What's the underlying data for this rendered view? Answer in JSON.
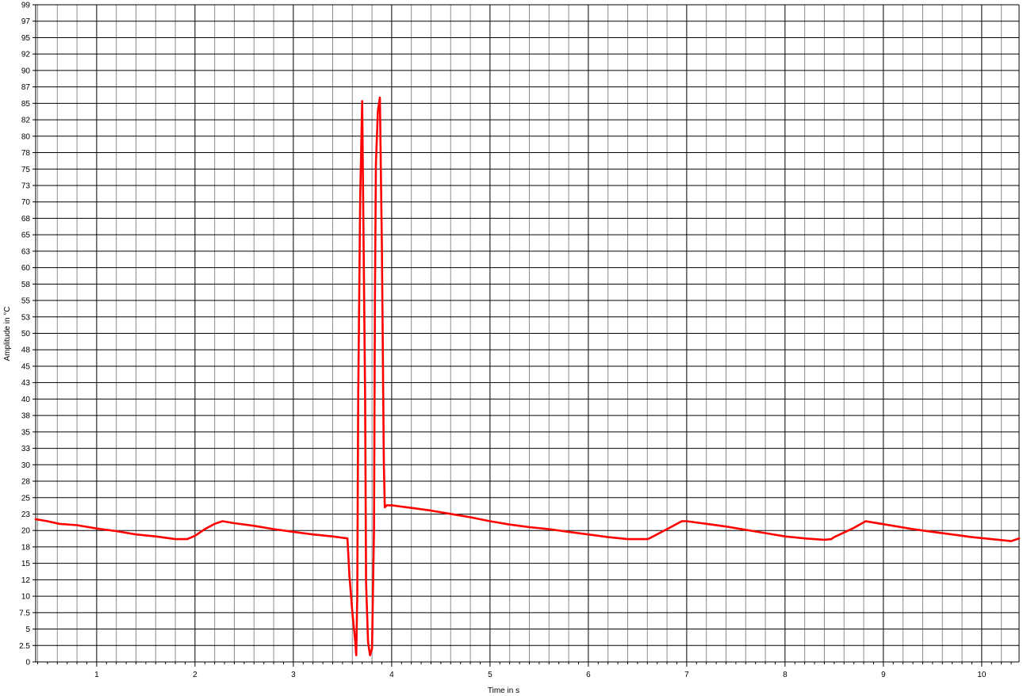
{
  "chart_data": {
    "type": "line",
    "title": "",
    "xlabel": "Time in s",
    "ylabel": "Amplitude in °C",
    "xlim": [
      0.38,
      10.38
    ],
    "ylim": [
      0,
      99
    ],
    "grid": true,
    "y_ticks": [
      "0",
      "2.5",
      "5",
      "7.5",
      "10",
      "12",
      "15",
      "18",
      "20",
      "23",
      "25",
      "28",
      "30",
      "33",
      "35",
      "38",
      "40",
      "43",
      "45",
      "48",
      "50",
      "53",
      "55",
      "58",
      "60",
      "63",
      "65",
      "68",
      "70",
      "73",
      "75",
      "78",
      "80",
      "82",
      "85",
      "87",
      "90",
      "92",
      "95",
      "97",
      "99"
    ],
    "x_ticks": [
      "1",
      "2",
      "3",
      "4",
      "5",
      "6",
      "7",
      "8",
      "9",
      "10"
    ],
    "series": [
      {
        "color": "#ff0000",
        "x": [
          0.38,
          0.5,
          0.62,
          0.8,
          1.0,
          1.2,
          1.4,
          1.6,
          1.8,
          1.92,
          2.0,
          2.1,
          2.2,
          2.28,
          2.4,
          2.6,
          2.8,
          3.0,
          3.2,
          3.4,
          3.55,
          3.57,
          3.6,
          3.63,
          3.64,
          3.65,
          3.66,
          3.68,
          3.7,
          3.71,
          3.73,
          3.74,
          3.76,
          3.78,
          3.8,
          3.82,
          3.83,
          3.84,
          3.86,
          3.88,
          3.9,
          3.92,
          3.93,
          3.95,
          4.0,
          4.2,
          4.4,
          4.6,
          4.8,
          5.0,
          5.2,
          5.4,
          5.6,
          5.8,
          6.0,
          6.2,
          6.4,
          6.6,
          6.62,
          6.8,
          6.95,
          7.0,
          7.2,
          7.4,
          7.6,
          7.8,
          8.0,
          8.2,
          8.4,
          8.47,
          8.5,
          8.7,
          8.82,
          8.9,
          9.1,
          9.3,
          9.5,
          9.7,
          9.9,
          10.1,
          10.3,
          10.38
        ],
        "y": [
          21.5,
          21.2,
          20.8,
          20.6,
          20.1,
          19.7,
          19.2,
          18.9,
          18.5,
          18.5,
          19.0,
          20.0,
          20.8,
          21.2,
          20.9,
          20.5,
          20.0,
          19.6,
          19.2,
          18.9,
          18.6,
          13.0,
          7.5,
          3.0,
          1.0,
          10.0,
          40.0,
          70.0,
          84.5,
          70.0,
          40.0,
          12.0,
          3.0,
          1.0,
          2.0,
          20.0,
          55.0,
          75.0,
          83.0,
          85.0,
          63.0,
          30.0,
          23.3,
          23.6,
          23.6,
          23.2,
          22.8,
          22.3,
          21.8,
          21.2,
          20.7,
          20.3,
          20.0,
          19.6,
          19.2,
          18.8,
          18.5,
          18.5,
          18.6,
          20.0,
          21.2,
          21.2,
          20.8,
          20.4,
          19.9,
          19.4,
          18.9,
          18.6,
          18.4,
          18.5,
          18.8,
          20.2,
          21.2,
          21.0,
          20.5,
          20.0,
          19.6,
          19.2,
          18.8,
          18.5,
          18.2,
          18.6
        ]
      }
    ]
  }
}
